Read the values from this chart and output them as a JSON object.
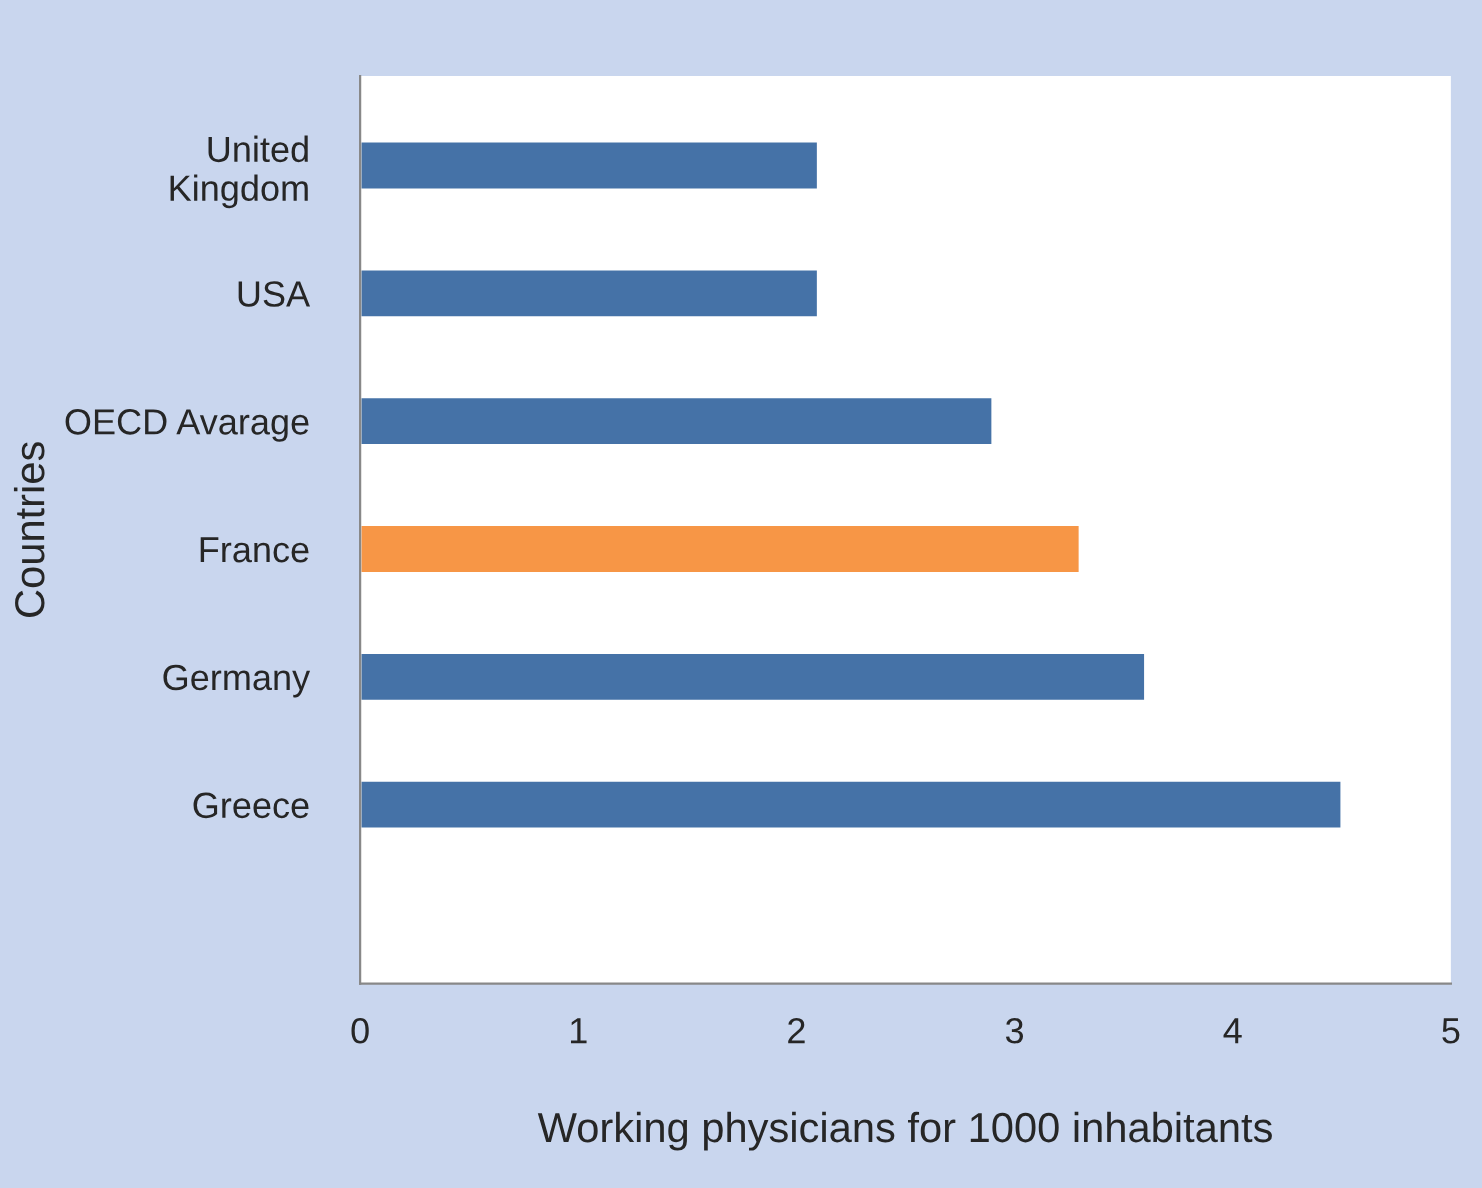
{
  "chart_data": {
    "type": "bar",
    "orientation": "horizontal",
    "xlabel": "Working physicians for 1000 inhabitants",
    "ylabel": "Countries",
    "categories": [
      "United\nKingdom",
      "USA",
      "OECD Avarage",
      "France",
      "Germany",
      "Greece"
    ],
    "values": [
      2.1,
      2.1,
      2.9,
      3.3,
      3.6,
      4.5
    ],
    "colors": [
      "#4572a7",
      "#4572a7",
      "#4572a7",
      "#f79646",
      "#4572a7",
      "#4572a7"
    ],
    "xlim": [
      0,
      5
    ],
    "xticks": [
      0,
      1,
      2,
      3,
      4,
      5
    ],
    "grid": false
  }
}
